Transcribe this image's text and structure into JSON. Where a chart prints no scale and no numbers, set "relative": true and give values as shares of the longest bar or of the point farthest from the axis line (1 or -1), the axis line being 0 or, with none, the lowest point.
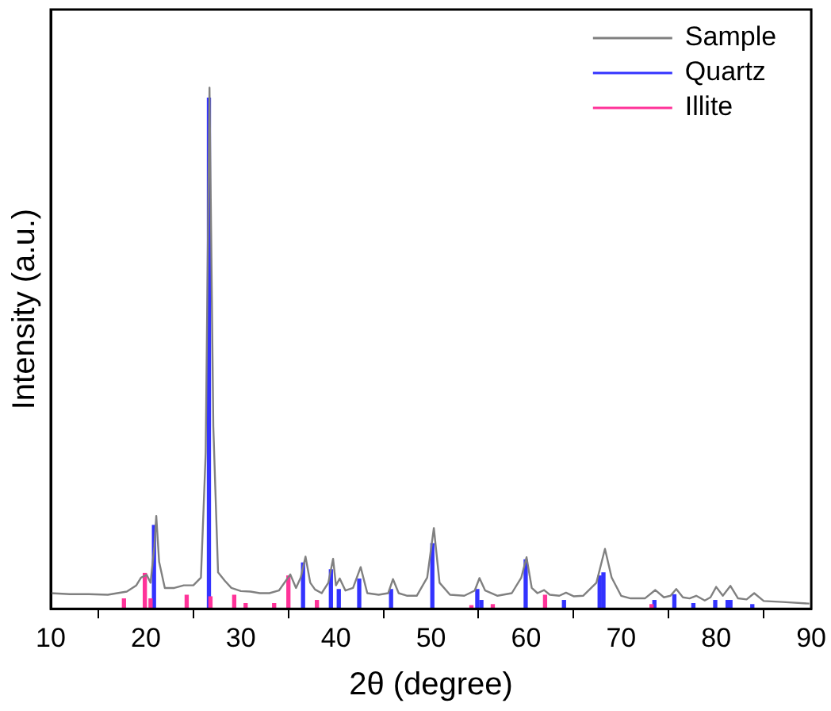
{
  "chart_data": {
    "type": "line",
    "relative": true,
    "xlabel": "2θ (degree)",
    "ylabel": "Intensity (a.u.)",
    "xlim": [
      10,
      90
    ],
    "xticks": [
      10,
      20,
      30,
      40,
      50,
      60,
      70,
      80,
      90
    ],
    "legend": "top right",
    "grid": false,
    "marker": "none",
    "series": [
      {
        "name": "Sample",
        "color": "#808080",
        "x": [
          10,
          12,
          14,
          16,
          17,
          18,
          19,
          19.5,
          20.1,
          20.5,
          20.9,
          21.1,
          21.4,
          22,
          23,
          24,
          25,
          25.8,
          26.3,
          26.7,
          27.1,
          27.6,
          28.3,
          29,
          30,
          31,
          32,
          33,
          34,
          35.2,
          35.8,
          36.3,
          36.8,
          37.3,
          37.8,
          38.5,
          39.2,
          39.7,
          40,
          40.4,
          41,
          41.8,
          42.6,
          43.3,
          44.5,
          45.5,
          46,
          46.6,
          47.5,
          48.5,
          49.6,
          50.3,
          50.9,
          52,
          53.5,
          54.6,
          55.1,
          55.7,
          57,
          58.5,
          59.5,
          60.05,
          60.6,
          61.2,
          61.9,
          62.5,
          63.5,
          64.2,
          65,
          66,
          67.4,
          68.3,
          69,
          70,
          71,
          72.5,
          73.6,
          74.5,
          75.2,
          75.8,
          76.5,
          77.2,
          77.9,
          78.8,
          79.4,
          80,
          80.7,
          81.5,
          82.3,
          83.2,
          84,
          85,
          87,
          89.8
        ],
        "values": [
          0.03,
          0.028,
          0.028,
          0.027,
          0.03,
          0.033,
          0.045,
          0.06,
          0.065,
          0.05,
          0.12,
          0.178,
          0.09,
          0.04,
          0.04,
          0.045,
          0.045,
          0.06,
          0.3,
          1.0,
          0.35,
          0.07,
          0.054,
          0.04,
          0.034,
          0.033,
          0.03,
          0.03,
          0.035,
          0.066,
          0.04,
          0.06,
          0.1,
          0.05,
          0.037,
          0.03,
          0.05,
          0.096,
          0.045,
          0.058,
          0.035,
          0.04,
          0.08,
          0.03,
          0.027,
          0.03,
          0.057,
          0.03,
          0.025,
          0.025,
          0.06,
          0.155,
          0.05,
          0.027,
          0.025,
          0.035,
          0.059,
          0.035,
          0.025,
          0.03,
          0.06,
          0.099,
          0.04,
          0.03,
          0.036,
          0.027,
          0.025,
          0.031,
          0.024,
          0.025,
          0.05,
          0.115,
          0.06,
          0.025,
          0.02,
          0.02,
          0.036,
          0.022,
          0.025,
          0.038,
          0.022,
          0.02,
          0.025,
          0.016,
          0.022,
          0.042,
          0.025,
          0.044,
          0.02,
          0.018,
          0.03,
          0.015,
          0.013,
          0.01
        ]
      },
      {
        "name": "Quartz",
        "color": "#3333ff",
        "type": "bar",
        "x": [
          20.86,
          26.64,
          36.54,
          39.47,
          40.3,
          42.45,
          45.8,
          50.14,
          54.87,
          55.3,
          59.96,
          63.99,
          67.74,
          68.14,
          73.5,
          75.6,
          77.6,
          79.9,
          81.2,
          81.5,
          83.8
        ],
        "values": [
          0.16,
          0.98,
          0.088,
          0.075,
          0.037,
          0.057,
          0.037,
          0.125,
          0.037,
          0.016,
          0.094,
          0.016,
          0.063,
          0.069,
          0.016,
          0.027,
          0.01,
          0.016,
          0.016,
          0.016,
          0.008
        ]
      },
      {
        "name": "Illite",
        "color": "#ff3399",
        "type": "bar",
        "x": [
          17.7,
          19.9,
          20.5,
          24.3,
          26.8,
          29.3,
          30.5,
          33.5,
          35,
          38,
          54.25,
          56.5,
          62,
          73.2
        ],
        "values": [
          0.019,
          0.068,
          0.019,
          0.026,
          0.023,
          0.026,
          0.01,
          0.01,
          0.063,
          0.016,
          0.006,
          0.008,
          0.026,
          0.008
        ]
      }
    ]
  }
}
